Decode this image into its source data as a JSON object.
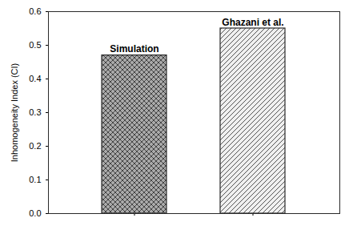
{
  "chart_data": {
    "type": "bar",
    "categories": [
      "Simulation",
      "Ghazani et al."
    ],
    "values": [
      0.47,
      0.55
    ],
    "colors": [
      "#aaaaaa",
      "#f0f0f0"
    ],
    "ylabel": "Inhomogeneity Index (CI)",
    "ylim": [
      0.0,
      0.6
    ],
    "yticks": [
      {
        "value": 0,
        "label": "0.0"
      },
      0.1,
      0.2,
      0.3,
      0.4,
      0.5,
      0.6
    ],
    "grid": false,
    "tick_labels": "y"
  }
}
